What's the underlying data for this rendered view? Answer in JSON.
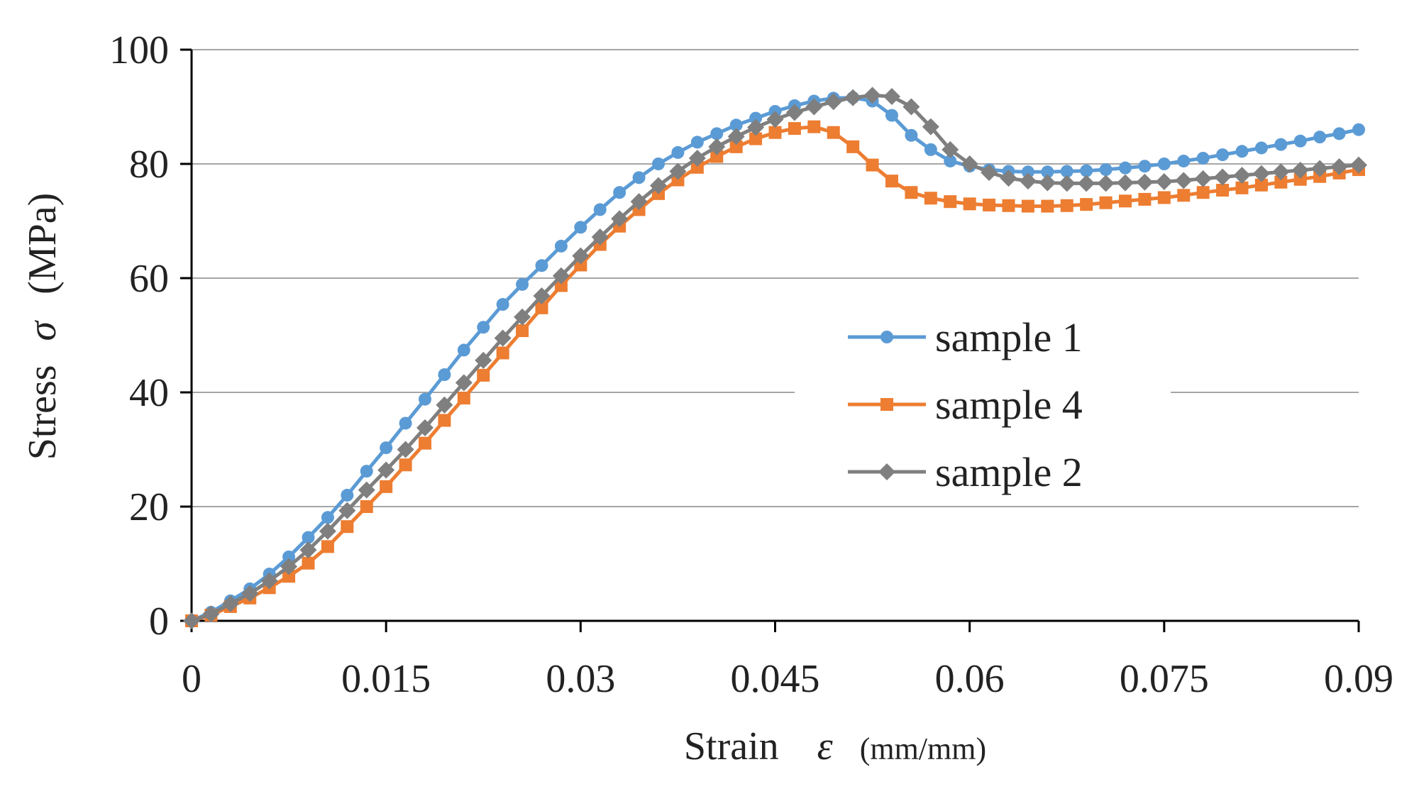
{
  "chart_data": {
    "type": "line",
    "xlabel": "Strain",
    "xsymbol": "ε",
    "xunit": "(mm/mm)",
    "ylabel": "Stress",
    "ysymbol": "σ",
    "yunit": "(MPa)",
    "xlim": [
      0,
      0.09
    ],
    "ylim": [
      0,
      100
    ],
    "xticks": [
      0,
      0.015,
      0.03,
      0.045,
      0.06,
      0.075,
      0.09
    ],
    "xtick_labels": [
      "0",
      "0.015",
      "0.03",
      "0.045",
      "0.06",
      "0.075",
      "0.09"
    ],
    "yticks": [
      0,
      20,
      40,
      60,
      80,
      100
    ],
    "ytick_labels": [
      "0",
      "20",
      "40",
      "60",
      "80",
      "100"
    ],
    "grid": "horizontal",
    "legend_position": "center-right",
    "series": [
      {
        "name": "sample 1",
        "color": "#5B9BD5",
        "marker": "circle",
        "points": [
          [
            0,
            0
          ],
          [
            0.0015,
            1.5
          ],
          [
            0.003,
            3.5
          ],
          [
            0.0045,
            5.6
          ],
          [
            0.006,
            8.2
          ],
          [
            0.0075,
            11.2
          ],
          [
            0.009,
            14.6
          ],
          [
            0.0105,
            18.1
          ],
          [
            0.012,
            22
          ],
          [
            0.0135,
            26.2
          ],
          [
            0.015,
            30.3
          ],
          [
            0.0165,
            34.6
          ],
          [
            0.018,
            38.8
          ],
          [
            0.0195,
            43.1
          ],
          [
            0.021,
            47.4
          ],
          [
            0.0225,
            51.4
          ],
          [
            0.024,
            55.4
          ],
          [
            0.0255,
            58.9
          ],
          [
            0.027,
            62.2
          ],
          [
            0.0285,
            65.6
          ],
          [
            0.03,
            68.9
          ],
          [
            0.0315,
            72
          ],
          [
            0.033,
            75
          ],
          [
            0.0345,
            77.6
          ],
          [
            0.036,
            80
          ],
          [
            0.0375,
            82
          ],
          [
            0.039,
            83.8
          ],
          [
            0.0405,
            85.3
          ],
          [
            0.042,
            86.8
          ],
          [
            0.0435,
            88
          ],
          [
            0.045,
            89.2
          ],
          [
            0.0465,
            90.2
          ],
          [
            0.048,
            91
          ],
          [
            0.0495,
            91.5
          ],
          [
            0.051,
            91.6
          ],
          [
            0.0525,
            91
          ],
          [
            0.054,
            88.5
          ],
          [
            0.0555,
            85
          ],
          [
            0.057,
            82.5
          ],
          [
            0.0585,
            80.5
          ],
          [
            0.06,
            79.6
          ],
          [
            0.0615,
            79
          ],
          [
            0.063,
            78.7
          ],
          [
            0.0645,
            78.6
          ],
          [
            0.066,
            78.6
          ],
          [
            0.0675,
            78.7
          ],
          [
            0.069,
            78.8
          ],
          [
            0.0705,
            79
          ],
          [
            0.072,
            79.3
          ],
          [
            0.0735,
            79.6
          ],
          [
            0.075,
            80
          ],
          [
            0.0765,
            80.5
          ],
          [
            0.078,
            81
          ],
          [
            0.0795,
            81.6
          ],
          [
            0.081,
            82.2
          ],
          [
            0.0825,
            82.8
          ],
          [
            0.084,
            83.4
          ],
          [
            0.0855,
            84
          ],
          [
            0.087,
            84.7
          ],
          [
            0.0885,
            85.3
          ],
          [
            0.09,
            86
          ]
        ]
      },
      {
        "name": "sample 4",
        "color": "#ED7D31",
        "marker": "square",
        "points": [
          [
            0,
            0
          ],
          [
            0.0015,
            1
          ],
          [
            0.003,
            2.5
          ],
          [
            0.0045,
            4
          ],
          [
            0.006,
            5.8
          ],
          [
            0.0075,
            7.8
          ],
          [
            0.009,
            10.1
          ],
          [
            0.0105,
            13
          ],
          [
            0.012,
            16.5
          ],
          [
            0.0135,
            20
          ],
          [
            0.015,
            23.5
          ],
          [
            0.0165,
            27.3
          ],
          [
            0.018,
            31.1
          ],
          [
            0.0195,
            35.1
          ],
          [
            0.021,
            39
          ],
          [
            0.0225,
            43
          ],
          [
            0.024,
            46.9
          ],
          [
            0.0255,
            50.8
          ],
          [
            0.027,
            54.8
          ],
          [
            0.0285,
            58.7
          ],
          [
            0.03,
            62.3
          ],
          [
            0.0315,
            65.9
          ],
          [
            0.033,
            69.1
          ],
          [
            0.0345,
            72
          ],
          [
            0.036,
            74.8
          ],
          [
            0.0375,
            77.2
          ],
          [
            0.039,
            79.4
          ],
          [
            0.0405,
            81.3
          ],
          [
            0.042,
            83
          ],
          [
            0.0435,
            84.4
          ],
          [
            0.045,
            85.5
          ],
          [
            0.0465,
            86.2
          ],
          [
            0.048,
            86.5
          ],
          [
            0.0495,
            85.5
          ],
          [
            0.051,
            83
          ],
          [
            0.0525,
            79.8
          ],
          [
            0.054,
            77
          ],
          [
            0.0555,
            75
          ],
          [
            0.057,
            74
          ],
          [
            0.0585,
            73.4
          ],
          [
            0.06,
            73
          ],
          [
            0.0615,
            72.8
          ],
          [
            0.063,
            72.7
          ],
          [
            0.0645,
            72.6
          ],
          [
            0.066,
            72.6
          ],
          [
            0.0675,
            72.7
          ],
          [
            0.069,
            72.9
          ],
          [
            0.0705,
            73.2
          ],
          [
            0.072,
            73.5
          ],
          [
            0.0735,
            73.8
          ],
          [
            0.075,
            74.1
          ],
          [
            0.0765,
            74.5
          ],
          [
            0.078,
            75
          ],
          [
            0.0795,
            75.4
          ],
          [
            0.081,
            75.8
          ],
          [
            0.0825,
            76.3
          ],
          [
            0.084,
            76.8
          ],
          [
            0.0855,
            77.3
          ],
          [
            0.087,
            77.8
          ],
          [
            0.0885,
            78.4
          ],
          [
            0.09,
            79
          ]
        ]
      },
      {
        "name": "sample 2",
        "color": "#7F7F7F",
        "marker": "diamond",
        "points": [
          [
            0,
            0
          ],
          [
            0.0015,
            1.2
          ],
          [
            0.003,
            3
          ],
          [
            0.0045,
            4.8
          ],
          [
            0.006,
            7
          ],
          [
            0.0075,
            9.5
          ],
          [
            0.009,
            12.4
          ],
          [
            0.0105,
            15.7
          ],
          [
            0.012,
            19.3
          ],
          [
            0.0135,
            22.9
          ],
          [
            0.015,
            26.4
          ],
          [
            0.0165,
            30
          ],
          [
            0.018,
            33.8
          ],
          [
            0.0195,
            37.8
          ],
          [
            0.021,
            41.7
          ],
          [
            0.0225,
            45.6
          ],
          [
            0.024,
            49.5
          ],
          [
            0.0255,
            53.2
          ],
          [
            0.027,
            56.9
          ],
          [
            0.0285,
            60.4
          ],
          [
            0.03,
            63.9
          ],
          [
            0.0315,
            67.2
          ],
          [
            0.033,
            70.4
          ],
          [
            0.0345,
            73.4
          ],
          [
            0.036,
            76.2
          ],
          [
            0.0375,
            78.7
          ],
          [
            0.039,
            81
          ],
          [
            0.0405,
            83
          ],
          [
            0.042,
            84.8
          ],
          [
            0.0435,
            86.4
          ],
          [
            0.045,
            87.8
          ],
          [
            0.0465,
            89
          ],
          [
            0.048,
            90
          ],
          [
            0.0495,
            90.9
          ],
          [
            0.051,
            91.6
          ],
          [
            0.0525,
            92
          ],
          [
            0.054,
            91.8
          ],
          [
            0.0555,
            90
          ],
          [
            0.057,
            86.5
          ],
          [
            0.0585,
            82.5
          ],
          [
            0.06,
            80
          ],
          [
            0.0615,
            78.5
          ],
          [
            0.063,
            77.5
          ],
          [
            0.0645,
            77
          ],
          [
            0.066,
            76.7
          ],
          [
            0.0675,
            76.6
          ],
          [
            0.069,
            76.6
          ],
          [
            0.0705,
            76.6
          ],
          [
            0.072,
            76.7
          ],
          [
            0.0735,
            76.8
          ],
          [
            0.075,
            76.9
          ],
          [
            0.0765,
            77.1
          ],
          [
            0.078,
            77.4
          ],
          [
            0.0795,
            77.7
          ],
          [
            0.081,
            78
          ],
          [
            0.0825,
            78.3
          ],
          [
            0.084,
            78.6
          ],
          [
            0.0855,
            78.9
          ],
          [
            0.087,
            79.2
          ],
          [
            0.0885,
            79.5
          ],
          [
            0.09,
            79.8
          ]
        ]
      }
    ]
  }
}
